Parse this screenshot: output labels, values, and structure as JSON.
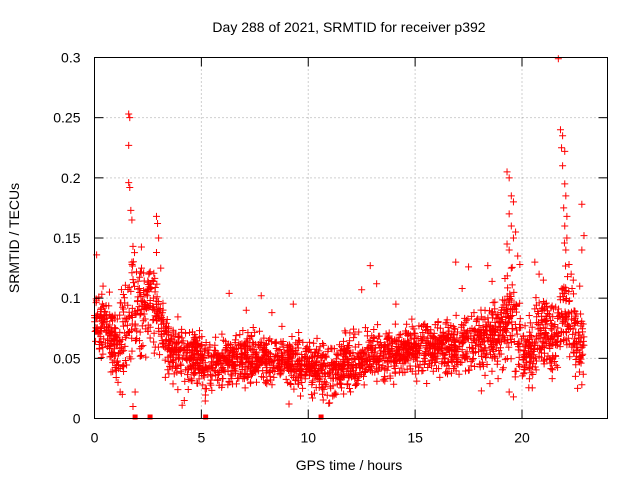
{
  "chart_data": {
    "type": "scatter",
    "title": "Day 288 of 2021, SRMTID for receiver p392",
    "xlabel": "GPS time / hours",
    "ylabel": "SRMTID / TECUs",
    "xlim": [
      0,
      24
    ],
    "ylim": [
      0,
      0.3
    ],
    "xticks": [
      0,
      5,
      10,
      15,
      20
    ],
    "xtick_labels": [
      "0",
      "5",
      "10",
      "15",
      "20"
    ],
    "yticks": [
      0,
      0.05,
      0.1,
      0.15,
      0.2,
      0.25,
      0.3
    ],
    "ytick_labels": [
      "0",
      "0.05",
      "0.1",
      "0.15",
      "0.2",
      "0.25",
      "0.3"
    ],
    "grid": true,
    "marker": "+",
    "color": "#ff0000",
    "series": [
      {
        "name": "SRMTID",
        "profile": [
          {
            "x": 0.0,
            "center": 0.075,
            "spread": 0.03
          },
          {
            "x": 0.5,
            "center": 0.08,
            "spread": 0.03
          },
          {
            "x": 1.0,
            "center": 0.06,
            "spread": 0.04
          },
          {
            "x": 1.5,
            "center": 0.08,
            "spread": 0.05
          },
          {
            "x": 2.0,
            "center": 0.09,
            "spread": 0.05
          },
          {
            "x": 2.5,
            "center": 0.095,
            "spread": 0.04
          },
          {
            "x": 3.0,
            "center": 0.085,
            "spread": 0.04
          },
          {
            "x": 3.5,
            "center": 0.06,
            "spread": 0.03
          },
          {
            "x": 4.5,
            "center": 0.05,
            "spread": 0.03
          },
          {
            "x": 5.5,
            "center": 0.045,
            "spread": 0.025
          },
          {
            "x": 7.0,
            "center": 0.05,
            "spread": 0.025
          },
          {
            "x": 8.5,
            "center": 0.05,
            "spread": 0.025
          },
          {
            "x": 10.0,
            "center": 0.045,
            "spread": 0.025
          },
          {
            "x": 11.0,
            "center": 0.04,
            "spread": 0.025
          },
          {
            "x": 12.5,
            "center": 0.05,
            "spread": 0.025
          },
          {
            "x": 14.0,
            "center": 0.055,
            "spread": 0.025
          },
          {
            "x": 15.5,
            "center": 0.06,
            "spread": 0.025
          },
          {
            "x": 17.0,
            "center": 0.06,
            "spread": 0.03
          },
          {
            "x": 18.0,
            "center": 0.065,
            "spread": 0.03
          },
          {
            "x": 19.0,
            "center": 0.07,
            "spread": 0.035
          },
          {
            "x": 19.5,
            "center": 0.09,
            "spread": 0.05
          },
          {
            "x": 20.0,
            "center": 0.06,
            "spread": 0.03
          },
          {
            "x": 20.5,
            "center": 0.055,
            "spread": 0.03
          },
          {
            "x": 21.0,
            "center": 0.075,
            "spread": 0.04
          },
          {
            "x": 21.5,
            "center": 0.06,
            "spread": 0.03
          },
          {
            "x": 22.0,
            "center": 0.09,
            "spread": 0.05
          },
          {
            "x": 22.5,
            "center": 0.07,
            "spread": 0.04
          },
          {
            "x": 22.9,
            "center": 0.06,
            "spread": 0.03
          }
        ],
        "points": [
          [
            1.6,
            0.253
          ],
          [
            1.65,
            0.25
          ],
          [
            1.6,
            0.227
          ],
          [
            1.6,
            0.196
          ],
          [
            1.65,
            0.192
          ],
          [
            1.7,
            0.173
          ],
          [
            1.75,
            0.165
          ],
          [
            1.8,
            0.143
          ],
          [
            1.75,
            0.13
          ],
          [
            2.2,
            0.125
          ],
          [
            2.1,
            0.108
          ],
          [
            2.3,
            0.121
          ],
          [
            2.9,
            0.168
          ],
          [
            2.95,
            0.162
          ],
          [
            3.0,
            0.15
          ],
          [
            2.9,
            0.138
          ],
          [
            3.1,
            0.125
          ],
          [
            0.1,
            0.136
          ],
          [
            0.2,
            0.101
          ],
          [
            0.4,
            0.11
          ],
          [
            0.7,
            0.105
          ],
          [
            0.9,
            0.062
          ],
          [
            1.0,
            0.04
          ],
          [
            1.1,
            0.03
          ],
          [
            1.2,
            0.022
          ],
          [
            1.3,
            0.02
          ],
          [
            1.8,
            0.01
          ],
          [
            1.9,
            0.022
          ],
          [
            3.9,
            0.024
          ],
          [
            4.2,
            0.015
          ],
          [
            4.1,
            0.011
          ],
          [
            6.3,
            0.104
          ],
          [
            7.1,
            0.09
          ],
          [
            7.8,
            0.102
          ],
          [
            8.3,
            0.088
          ],
          [
            9.3,
            0.095
          ],
          [
            9.1,
            0.012
          ],
          [
            10.2,
            0.017
          ],
          [
            11.0,
            0.013
          ],
          [
            11.3,
            0.02
          ],
          [
            12.5,
            0.107
          ],
          [
            12.9,
            0.127
          ],
          [
            13.2,
            0.112
          ],
          [
            14.1,
            0.095
          ],
          [
            16.9,
            0.13
          ],
          [
            17.5,
            0.126
          ],
          [
            18.4,
            0.127
          ],
          [
            18.6,
            0.114
          ],
          [
            17.2,
            0.108
          ],
          [
            17.5,
            0.04
          ],
          [
            18.5,
            0.029
          ],
          [
            18.1,
            0.023
          ],
          [
            19.3,
            0.205
          ],
          [
            19.4,
            0.2
          ],
          [
            19.5,
            0.185
          ],
          [
            19.6,
            0.18
          ],
          [
            19.4,
            0.17
          ],
          [
            19.5,
            0.16
          ],
          [
            19.6,
            0.15
          ],
          [
            19.7,
            0.155
          ],
          [
            19.3,
            0.145
          ],
          [
            19.4,
            0.14
          ],
          [
            19.8,
            0.135
          ],
          [
            19.5,
            0.125
          ],
          [
            19.9,
            0.128
          ],
          [
            19.4,
            0.022
          ],
          [
            19.6,
            0.018
          ],
          [
            20.6,
            0.13
          ],
          [
            20.8,
            0.12
          ],
          [
            21.0,
            0.115
          ],
          [
            21.7,
            0.299
          ],
          [
            21.8,
            0.24
          ],
          [
            21.9,
            0.235
          ],
          [
            21.85,
            0.225
          ],
          [
            22.0,
            0.222
          ],
          [
            21.9,
            0.21
          ],
          [
            22.0,
            0.195
          ],
          [
            22.05,
            0.185
          ],
          [
            21.95,
            0.175
          ],
          [
            22.1,
            0.168
          ],
          [
            22.0,
            0.16
          ],
          [
            22.1,
            0.15
          ],
          [
            22.05,
            0.14
          ],
          [
            22.2,
            0.128
          ],
          [
            22.3,
            0.12
          ],
          [
            22.4,
            0.115
          ],
          [
            22.8,
            0.178
          ],
          [
            22.9,
            0.152
          ],
          [
            22.8,
            0.14
          ],
          [
            22.7,
            0.11
          ],
          [
            22.6,
            0.025
          ],
          [
            22.8,
            0.028
          ],
          [
            22.5,
            0.035
          ]
        ]
      }
    ],
    "zero_markers_x": [
      1.9,
      2.6,
      5.2,
      10.6
    ]
  }
}
